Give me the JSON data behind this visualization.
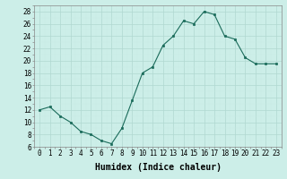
{
  "x": [
    0,
    1,
    2,
    3,
    4,
    5,
    6,
    7,
    8,
    9,
    10,
    11,
    12,
    13,
    14,
    15,
    16,
    17,
    18,
    19,
    20,
    21,
    22,
    23
  ],
  "y": [
    12,
    12.5,
    11,
    10,
    8.5,
    8,
    7,
    6.5,
    9,
    13.5,
    18,
    19,
    22.5,
    24,
    26.5,
    26,
    28,
    27.5,
    24,
    23.5,
    20.5,
    19.5,
    19.5,
    19.5
  ],
  "line_color": "#1a6b5a",
  "marker_color": "#1a6b5a",
  "bg_color": "#cceee8",
  "grid_major_color": "#b0d8d0",
  "grid_minor_color": "#c8ebe5",
  "xlabel": "Humidex (Indice chaleur)",
  "ylim": [
    6,
    29
  ],
  "xlim": [
    -0.5,
    23.5
  ],
  "yticks": [
    6,
    8,
    10,
    12,
    14,
    16,
    18,
    20,
    22,
    24,
    26,
    28
  ],
  "xticks": [
    0,
    1,
    2,
    3,
    4,
    5,
    6,
    7,
    8,
    9,
    10,
    11,
    12,
    13,
    14,
    15,
    16,
    17,
    18,
    19,
    20,
    21,
    22,
    23
  ],
  "xtick_labels": [
    "0",
    "1",
    "2",
    "3",
    "4",
    "5",
    "6",
    "7",
    "8",
    "9",
    "10",
    "11",
    "12",
    "13",
    "14",
    "15",
    "16",
    "17",
    "18",
    "19",
    "20",
    "21",
    "22",
    "23"
  ],
  "tick_fontsize": 5.5,
  "xlabel_fontsize": 7.0
}
